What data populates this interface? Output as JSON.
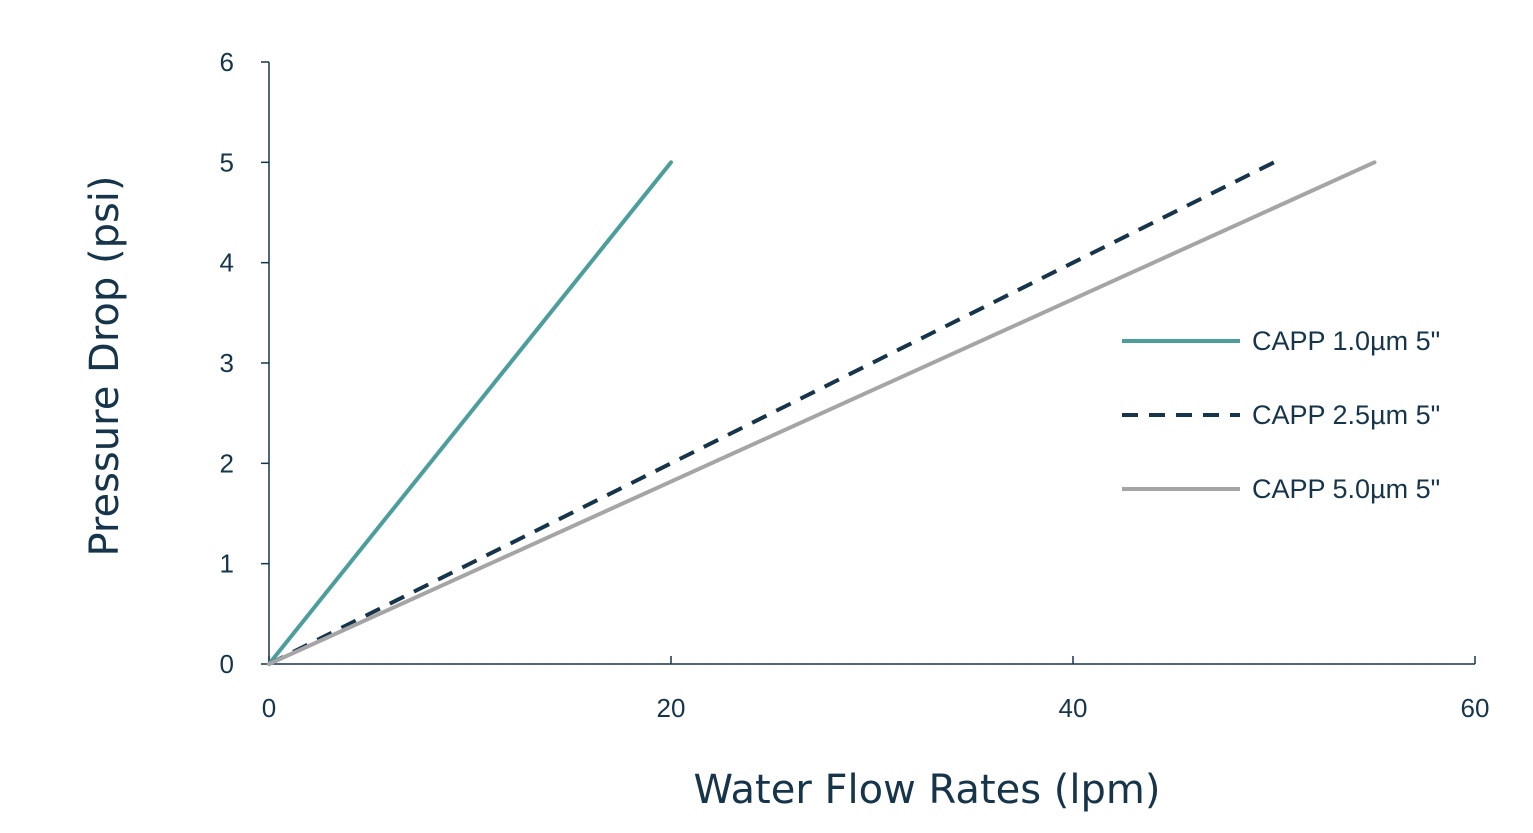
{
  "chart_data": {
    "type": "line",
    "title": "",
    "xlabel": "Water Flow Rates (lpm)",
    "ylabel": "Pressure Drop (psi)",
    "xlim": [
      0,
      60
    ],
    "ylim": [
      0,
      6
    ],
    "x_ticks": [
      "0",
      "20",
      "40",
      "60"
    ],
    "y_ticks": [
      "0",
      "1",
      "2",
      "3",
      "4",
      "5",
      "6"
    ],
    "grid": false,
    "legend_position": "right",
    "series": [
      {
        "name": "CAPP 1.0µm 5\"",
        "color": "#4b9e9c",
        "dash": "solid",
        "x": [
          0,
          20
        ],
        "y": [
          0,
          5
        ]
      },
      {
        "name": "CAPP 2.5µm 5\"",
        "color": "#16354a",
        "dash": "dashed",
        "x": [
          0,
          50
        ],
        "y": [
          0,
          5
        ]
      },
      {
        "name": "CAPP 5.0µm 5\"",
        "color": "#a5a5a5",
        "dash": "solid",
        "x": [
          0,
          55
        ],
        "y": [
          0,
          5
        ]
      }
    ]
  }
}
